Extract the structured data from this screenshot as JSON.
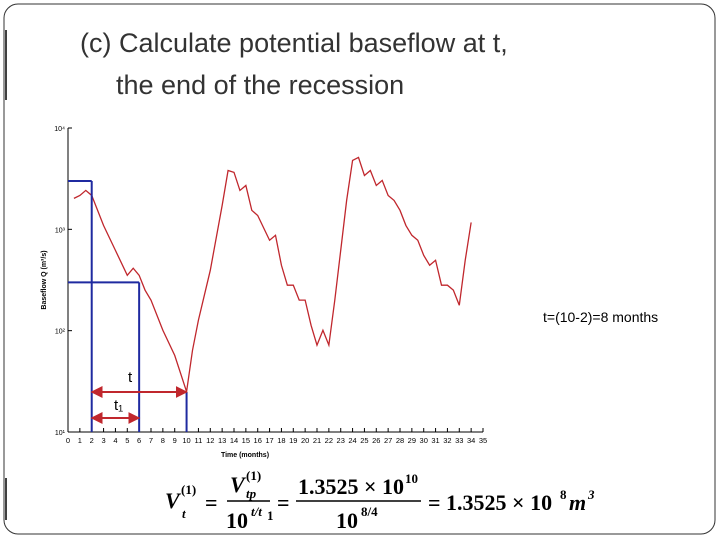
{
  "title": [
    "(c) Calculate potential baseflow at t,",
    "the end of the recession"
  ],
  "chart_data": {
    "type": "line",
    "xlabel": "Time (months)",
    "ylabel": "Baseflow Q (m³/s)",
    "xlim": [
      0,
      35
    ],
    "xticks": [
      0,
      1,
      2,
      3,
      4,
      5,
      6,
      7,
      8,
      9,
      10,
      11,
      12,
      13,
      14,
      15,
      16,
      17,
      18,
      19,
      20,
      21,
      22,
      23,
      24,
      25,
      26,
      27,
      28,
      29,
      30,
      31,
      32,
      33,
      34,
      35
    ],
    "ylim": [
      10,
      10000
    ],
    "yscale": "log",
    "yticks": [
      {
        "value": 10,
        "label": "10¹"
      },
      {
        "value": 100,
        "label": "10²"
      },
      {
        "value": 1000,
        "label": "10³"
      },
      {
        "value": 10000,
        "label": "10⁴"
      }
    ],
    "series": [
      {
        "color": "#c0272d",
        "x": [
          0.5,
          1,
          1.5,
          2,
          3,
          4,
          5,
          5.5,
          6,
          6.5,
          7,
          8,
          9,
          10,
          10.5,
          11,
          12,
          13,
          13.5,
          14,
          14.5,
          15,
          15.5,
          16,
          17,
          17.5,
          18,
          18.5,
          19,
          19.5,
          20,
          20.5,
          21,
          21.5,
          22,
          22.5,
          23,
          23.5,
          24,
          24.5,
          25,
          25.5,
          26,
          26.5,
          27,
          27.5,
          28,
          28.5,
          29,
          29.5,
          30,
          30.5,
          31,
          31.5,
          32,
          32.5,
          33,
          33.5,
          34
        ],
        "values": [
          2020,
          2160,
          2420,
          2160,
          1090,
          620,
          352,
          413,
          352,
          251,
          200,
          101,
          57,
          25,
          64,
          127,
          394,
          1720,
          3810,
          3650,
          2420,
          2710,
          1540,
          1370,
          780,
          873,
          442,
          281,
          281,
          200,
          200,
          113,
          72,
          101,
          72,
          200,
          620,
          1930,
          4790,
          5120,
          3400,
          3810,
          2710,
          3040,
          2160,
          1930,
          1540,
          1090,
          873,
          780,
          554,
          442,
          495,
          281,
          281,
          251,
          178,
          495,
          1170
        ]
      }
    ],
    "recession": {
      "color": "#1f2aa0",
      "start": 2,
      "mid": 6,
      "end": 10,
      "q_start": 3000,
      "q_mid": 300,
      "t_label": "t",
      "t1_label": "t₁",
      "arrow_color": "#c0272d"
    },
    "annotation": "t=(10-2)=8 months"
  },
  "formula": {
    "parts": [
      "V",
      "(1)",
      "t",
      "=",
      "V",
      "(1)",
      "tp",
      "10",
      "t/t",
      "1",
      "=",
      "1.3525 × 10",
      "10",
      "10",
      "8/4",
      "= 1.3525 × 10",
      "8",
      "m",
      "3"
    ]
  }
}
